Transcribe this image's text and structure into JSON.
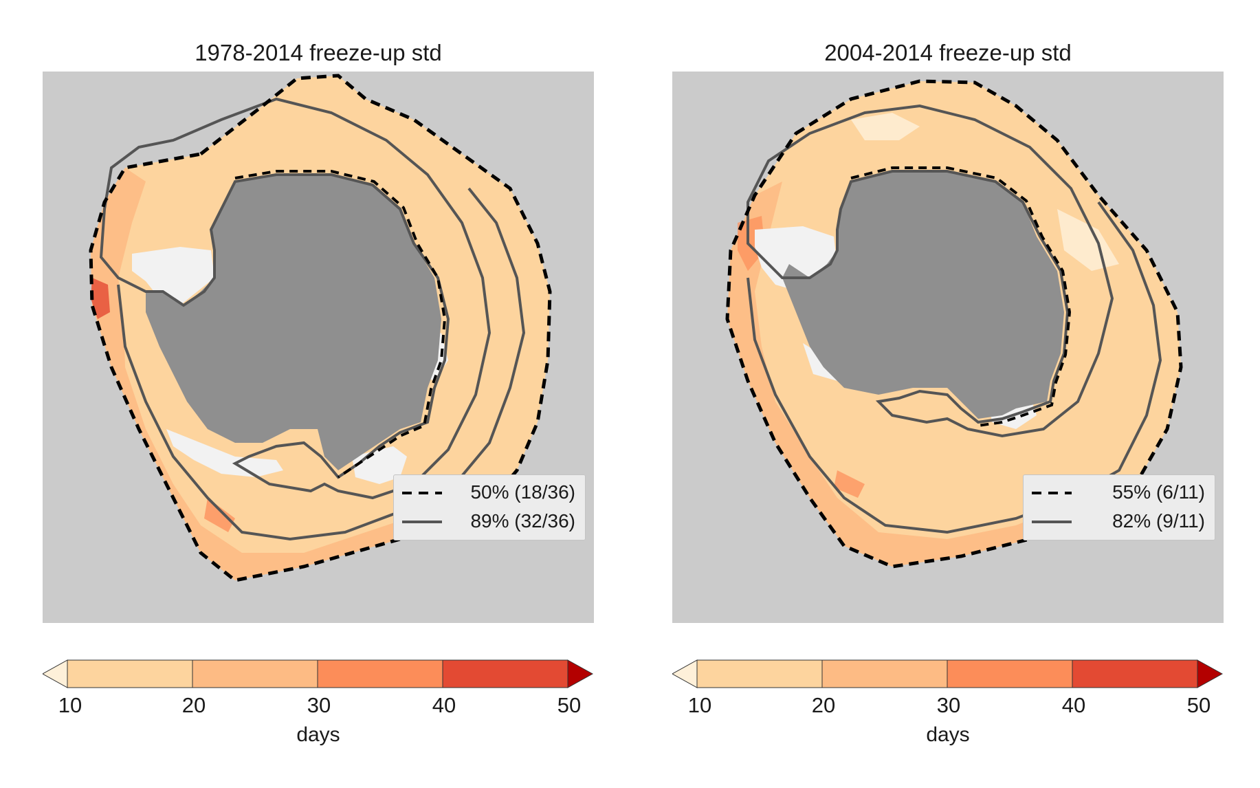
{
  "panels": [
    {
      "title": "1978-2014 freeze-up std",
      "legend": [
        {
          "style": "dashed",
          "label": "50% (18/36)"
        },
        {
          "style": "solid",
          "label": "89% (32/36)"
        }
      ]
    },
    {
      "title": "2004-2014 freeze-up std",
      "legend": [
        {
          "style": "dashed",
          "label": "55% (6/11)"
        },
        {
          "style": "solid",
          "label": "82% (9/11)"
        }
      ]
    }
  ],
  "colorbar": {
    "label": "days",
    "ticks": [
      "10",
      "20",
      "30",
      "40",
      "50"
    ],
    "colors": [
      "#fdd49e",
      "#fdbb84",
      "#fc8d59",
      "#e34a33"
    ],
    "under_color": "#fef0d9",
    "over_color": "#b30000"
  },
  "colors": {
    "ocean": "#cbcbcb",
    "land": "#8f8f8f",
    "ice_shelf": "#f2f2f2",
    "low_std": "#fdd49e",
    "mid_std": "#fdbb84",
    "high_std": "#fc8d59",
    "very_high_std": "#e34a33",
    "contour_solid": "#555555",
    "contour_dashed": "#000000"
  }
}
